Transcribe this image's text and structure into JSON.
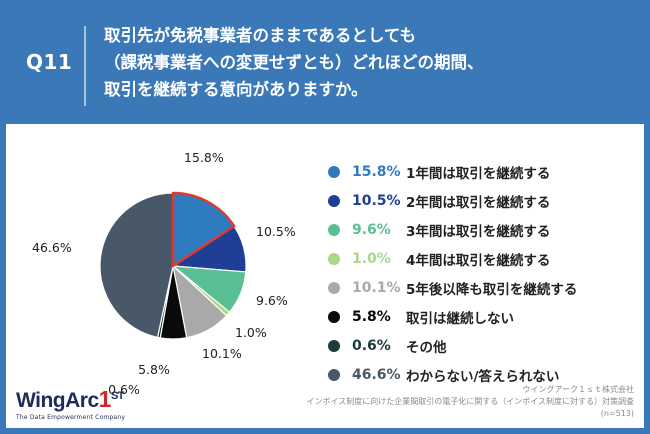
{
  "header": {
    "q_label": "Q11",
    "question_lines": [
      "取引先が免税事業者のままであるとしても",
      "（課税事業者への変更せずとも）どれほどの期間、",
      "取引を継続する意向がありますか。"
    ]
  },
  "colors": {
    "background": "#3a78b8",
    "highlight_outline": "#e03a2e"
  },
  "chart_data": {
    "type": "pie",
    "title": "",
    "start_angle_deg": 0,
    "direction": "clockwise",
    "highlight_index": 0,
    "slices": [
      {
        "label": "1年間は取引を継続する",
        "value": 15.8,
        "display": "15.8%",
        "color": "#2f7bc0"
      },
      {
        "label": "2年間は取引を継続する",
        "value": 10.5,
        "display": "10.5%",
        "color": "#1f3f96"
      },
      {
        "label": "3年間は取引を継続する",
        "value": 9.6,
        "display": "9.6%",
        "color": "#5bbf94"
      },
      {
        "label": "4年間は取引を継続する",
        "value": 1.0,
        "display": "1.0%",
        "color": "#a9d88a"
      },
      {
        "label": "5年後以降も取引を継続する",
        "value": 10.1,
        "display": "10.1%",
        "color": "#a9a9a9"
      },
      {
        "label": "取引は継続しない",
        "value": 5.8,
        "display": "5.8%",
        "color": "#0a0a0a"
      },
      {
        "label": "その他",
        "value": 0.6,
        "display": "0.6%",
        "color": "#1e3b3b"
      },
      {
        "label": "わからない/答えられない",
        "value": 46.6,
        "display": "46.6%",
        "color": "#485868"
      }
    ]
  },
  "logo": {
    "brand_prefix": "WingArc",
    "brand_one": "1",
    "brand_st": "ST",
    "tagline": "The Data Empowerment Company"
  },
  "source": {
    "line1": "ウイングアーク１ｓｔ株式会社",
    "line2": "インボイス制度に向けた企業間取引の電子化に関する（インボイス制度に対する）対策調査",
    "line3": "(n=513)"
  }
}
